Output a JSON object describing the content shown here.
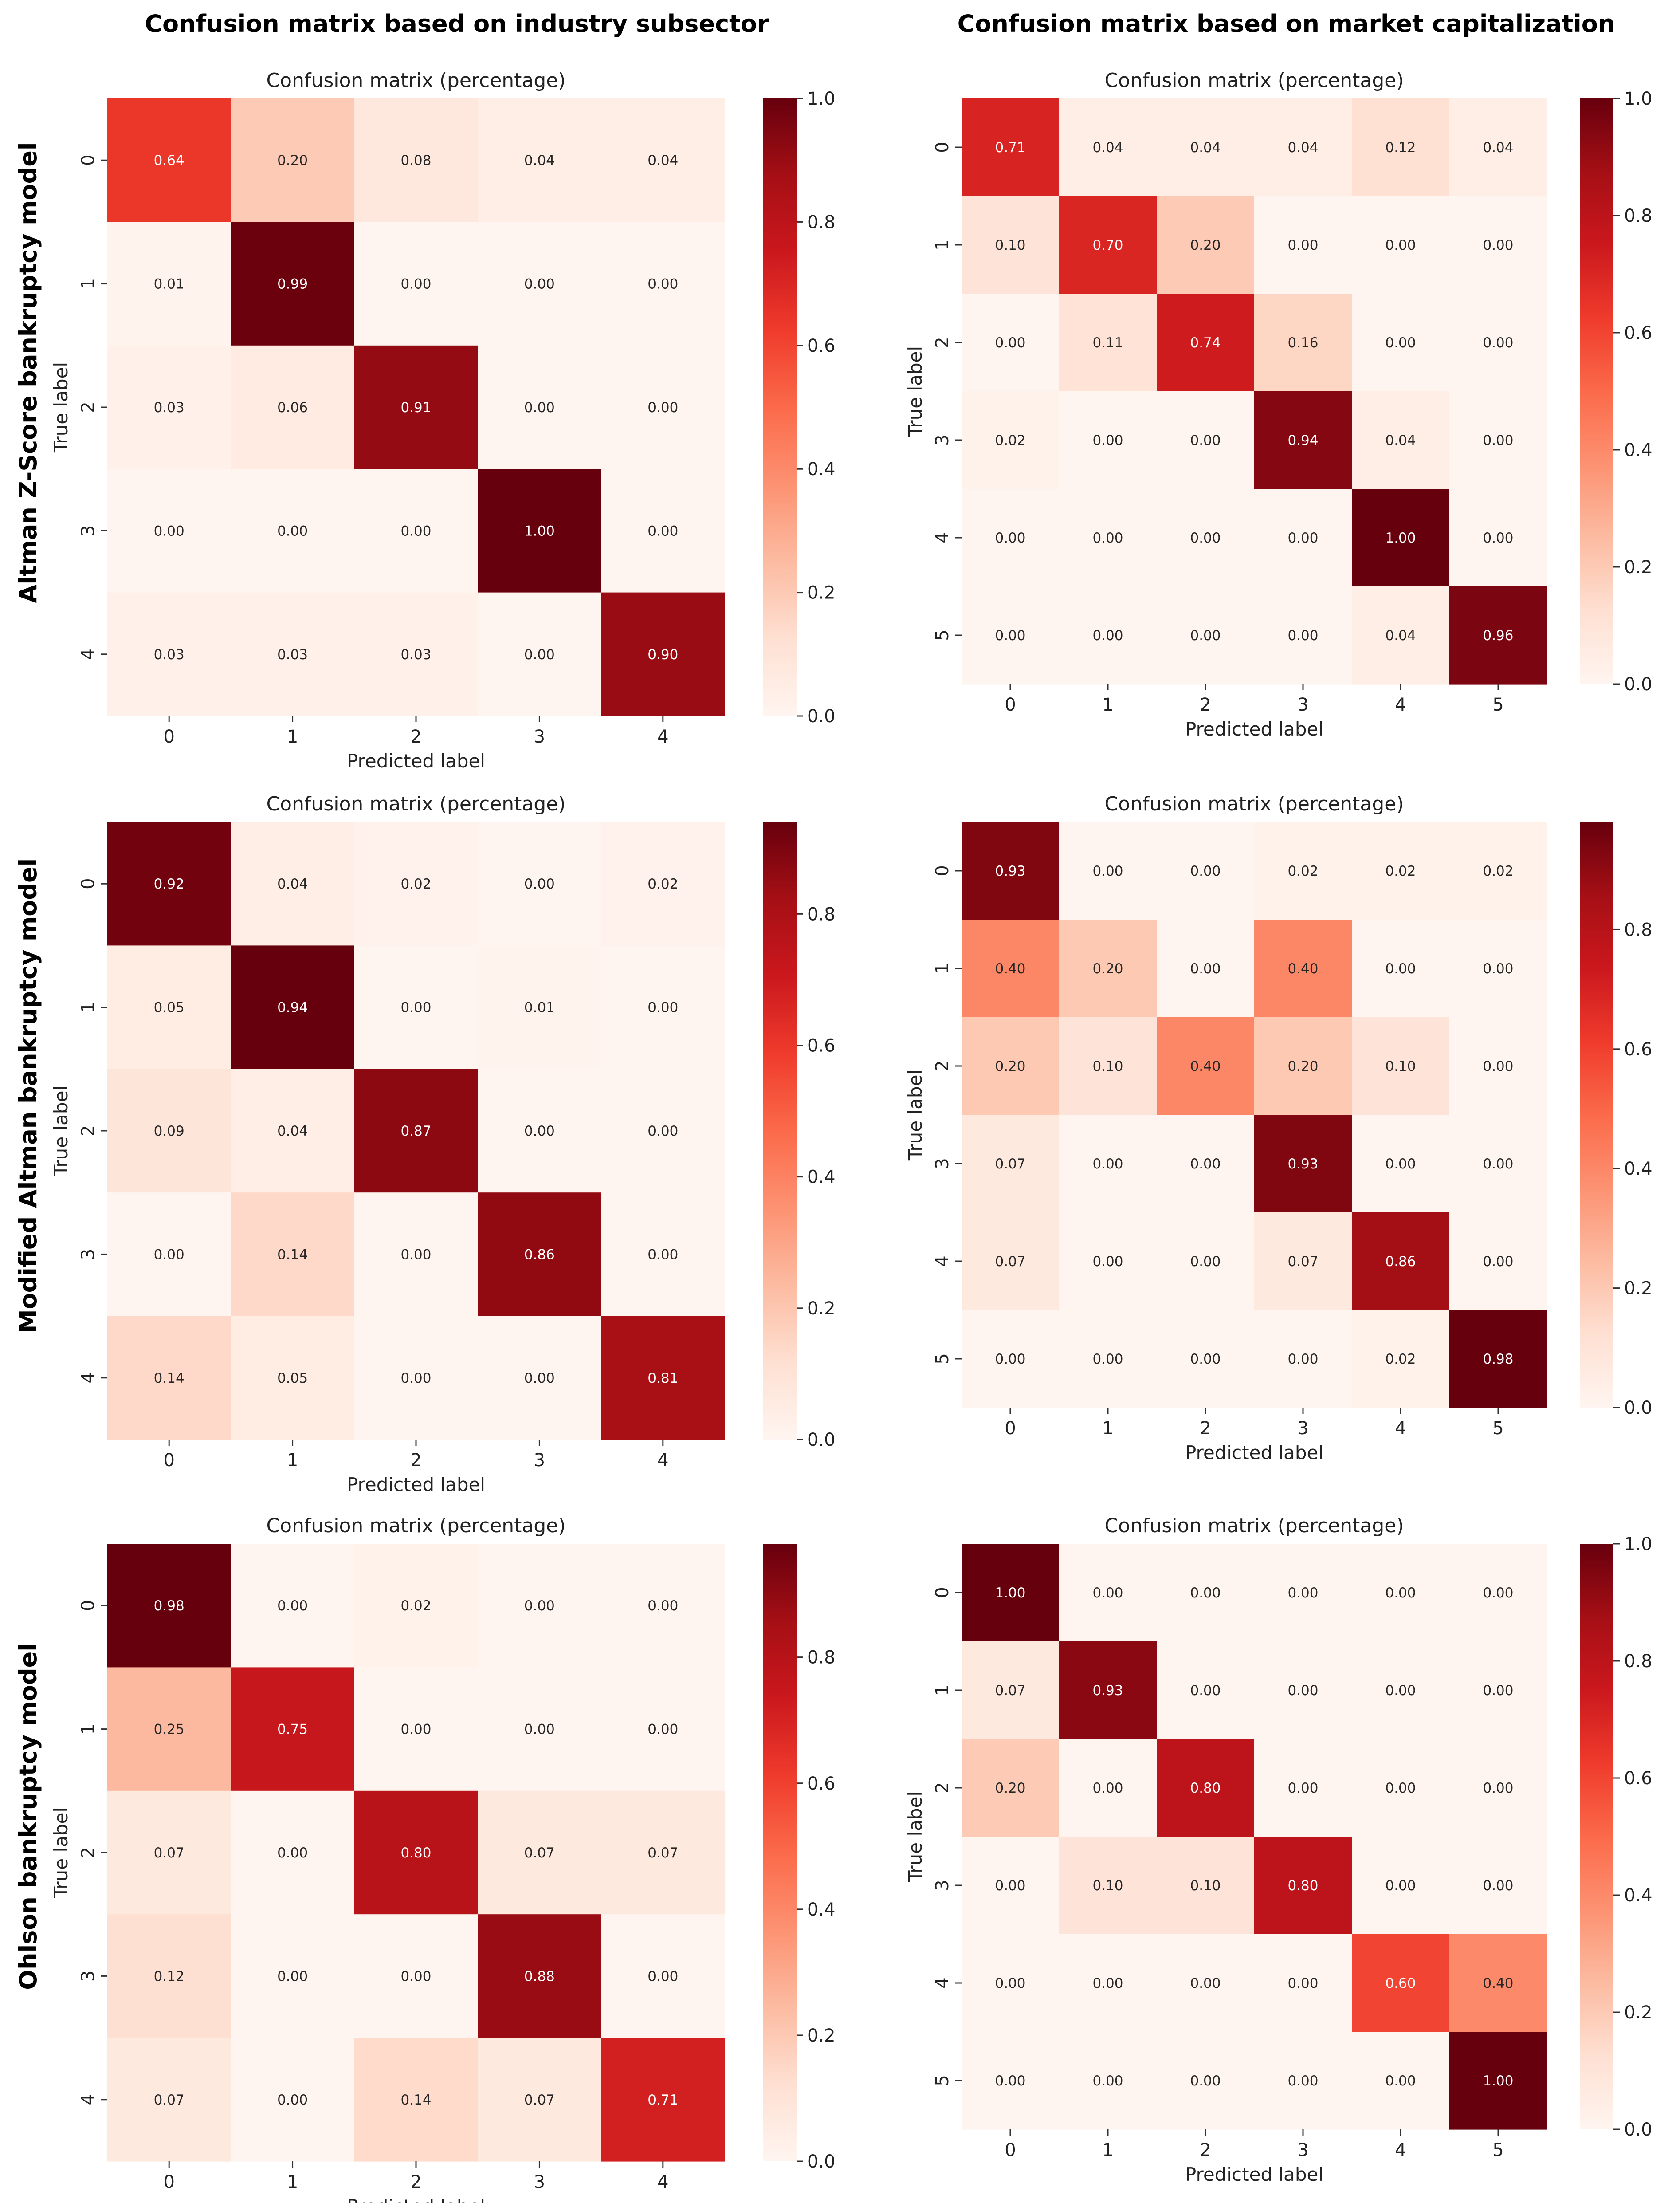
{
  "column_titles": [
    "Confusion matrix based on industry subsector",
    "Confusion matrix based on market capitalization"
  ],
  "row_titles": [
    "Altman Z-Score bankruptcy model",
    "Modified Altman bankruptcy model",
    "Ohlson bankruptcy model"
  ],
  "chart_data": [
    {
      "type": "heatmap",
      "title": "Confusion matrix (percentage)",
      "xlabel": "Predicted label",
      "ylabel": "True label",
      "categories": [
        "0",
        "1",
        "2",
        "3",
        "4"
      ],
      "values": [
        [
          0.64,
          0.2,
          0.08,
          0.04,
          0.04
        ],
        [
          0.01,
          0.99,
          0.0,
          0.0,
          0.0
        ],
        [
          0.03,
          0.06,
          0.91,
          0.0,
          0.0
        ],
        [
          0.0,
          0.0,
          0.0,
          1.0,
          0.0
        ],
        [
          0.03,
          0.03,
          0.03,
          0.0,
          0.9
        ]
      ],
      "colorbar_range": [
        0,
        1.0
      ],
      "colorbar_ticks": [
        "0.0",
        "0.2",
        "0.4",
        "0.6",
        "0.8",
        "1.0"
      ]
    },
    {
      "type": "heatmap",
      "title": "Confusion matrix (percentage)",
      "xlabel": "Predicted label",
      "ylabel": "True label",
      "categories": [
        "0",
        "1",
        "2",
        "3",
        "4",
        "5"
      ],
      "values": [
        [
          0.71,
          0.04,
          0.04,
          0.04,
          0.12,
          0.04
        ],
        [
          0.1,
          0.7,
          0.2,
          0.0,
          0.0,
          0.0
        ],
        [
          0.0,
          0.11,
          0.74,
          0.16,
          0.0,
          0.0
        ],
        [
          0.02,
          0.0,
          0.0,
          0.94,
          0.04,
          0.0
        ],
        [
          0.0,
          0.0,
          0.0,
          0.0,
          1.0,
          0.0
        ],
        [
          0.0,
          0.0,
          0.0,
          0.0,
          0.04,
          0.96
        ]
      ],
      "colorbar_range": [
        0,
        1.0
      ],
      "colorbar_ticks": [
        "0.0",
        "0.2",
        "0.4",
        "0.6",
        "0.8",
        "1.0"
      ]
    },
    {
      "type": "heatmap",
      "title": "Confusion matrix (percentage)",
      "xlabel": "Predicted label",
      "ylabel": "True label",
      "categories": [
        "0",
        "1",
        "2",
        "3",
        "4"
      ],
      "values": [
        [
          0.92,
          0.04,
          0.02,
          0.0,
          0.02
        ],
        [
          0.05,
          0.94,
          0.0,
          0.01,
          0.0
        ],
        [
          0.09,
          0.04,
          0.87,
          0.0,
          0.0
        ],
        [
          0.0,
          0.14,
          0.0,
          0.86,
          0.0
        ],
        [
          0.14,
          0.05,
          0.0,
          0.0,
          0.81
        ]
      ],
      "colorbar_range": [
        0,
        0.94
      ],
      "colorbar_ticks": [
        "0.0",
        "0.2",
        "0.4",
        "0.6",
        "0.8"
      ]
    },
    {
      "type": "heatmap",
      "title": "Confusion matrix (percentage)",
      "xlabel": "Predicted label",
      "ylabel": "True label",
      "categories": [
        "0",
        "1",
        "2",
        "3",
        "4",
        "5"
      ],
      "values": [
        [
          0.93,
          0.0,
          0.0,
          0.02,
          0.02,
          0.02
        ],
        [
          0.4,
          0.2,
          0.0,
          0.4,
          0.0,
          0.0
        ],
        [
          0.2,
          0.1,
          0.4,
          0.2,
          0.1,
          0.0
        ],
        [
          0.07,
          0.0,
          0.0,
          0.93,
          0.0,
          0.0
        ],
        [
          0.07,
          0.0,
          0.0,
          0.07,
          0.86,
          0.0
        ],
        [
          0.0,
          0.0,
          0.0,
          0.0,
          0.02,
          0.98
        ]
      ],
      "colorbar_range": [
        0,
        0.98
      ],
      "colorbar_ticks": [
        "0.0",
        "0.2",
        "0.4",
        "0.6",
        "0.8"
      ]
    },
    {
      "type": "heatmap",
      "title": "Confusion matrix (percentage)",
      "xlabel": "Predicted label",
      "ylabel": "True label",
      "categories": [
        "0",
        "1",
        "2",
        "3",
        "4"
      ],
      "values": [
        [
          0.98,
          0.0,
          0.02,
          0.0,
          0.0
        ],
        [
          0.25,
          0.75,
          0.0,
          0.0,
          0.0
        ],
        [
          0.07,
          0.0,
          0.8,
          0.07,
          0.07
        ],
        [
          0.12,
          0.0,
          0.0,
          0.88,
          0.0
        ],
        [
          0.07,
          0.0,
          0.14,
          0.07,
          0.71
        ]
      ],
      "colorbar_range": [
        0,
        0.98
      ],
      "colorbar_ticks": [
        "0.0",
        "0.2",
        "0.4",
        "0.6",
        "0.8"
      ]
    },
    {
      "type": "heatmap",
      "title": "Confusion matrix (percentage)",
      "xlabel": "Predicted label",
      "ylabel": "True label",
      "categories": [
        "0",
        "1",
        "2",
        "3",
        "4",
        "5"
      ],
      "values": [
        [
          1.0,
          0.0,
          0.0,
          0.0,
          0.0,
          0.0
        ],
        [
          0.07,
          0.93,
          0.0,
          0.0,
          0.0,
          0.0
        ],
        [
          0.2,
          0.0,
          0.8,
          0.0,
          0.0,
          0.0
        ],
        [
          0.0,
          0.1,
          0.1,
          0.8,
          0.0,
          0.0
        ],
        [
          0.0,
          0.0,
          0.0,
          0.0,
          0.6,
          0.4
        ],
        [
          0.0,
          0.0,
          0.0,
          0.0,
          0.0,
          1.0
        ]
      ],
      "colorbar_range": [
        0,
        1.0
      ],
      "colorbar_ticks": [
        "0.0",
        "0.2",
        "0.4",
        "0.6",
        "0.8",
        "1.0"
      ]
    }
  ]
}
